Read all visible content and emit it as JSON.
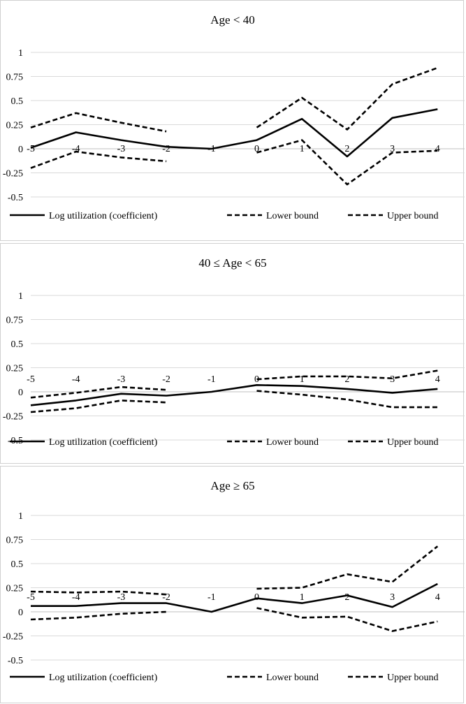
{
  "chart_data": [
    {
      "type": "line",
      "title": "Age < 40",
      "x": [
        -5,
        -4,
        -3,
        -2,
        -1,
        0,
        1,
        2,
        3,
        4
      ],
      "yticks": [
        "1",
        "0.75",
        "0.5",
        "0.25",
        "0",
        "-0.25",
        "-0.5"
      ],
      "ylim": [
        -0.5,
        1
      ],
      "grid": true,
      "legend_position": "bottom",
      "series": [
        {
          "name": "Log utilization (coefficient)",
          "style": "solid",
          "values": [
            0.01,
            0.17,
            0.09,
            0.02,
            0.0,
            0.09,
            0.31,
            -0.08,
            0.32,
            0.41
          ]
        },
        {
          "name": "Lower bound",
          "style": "dashed",
          "values": [
            -0.2,
            -0.03,
            -0.09,
            -0.13,
            null,
            -0.04,
            0.09,
            -0.37,
            -0.04,
            -0.02
          ]
        },
        {
          "name": "Upper bound",
          "style": "dashed",
          "values": [
            0.22,
            0.37,
            0.27,
            0.18,
            null,
            0.22,
            0.53,
            0.2,
            0.67,
            0.84
          ]
        }
      ]
    },
    {
      "type": "line",
      "title": "40 ≤ Age < 65",
      "x": [
        -5,
        -4,
        -3,
        -2,
        -1,
        0,
        1,
        2,
        3,
        4
      ],
      "yticks": [
        "1",
        "0.75",
        "0.5",
        "0.25",
        "0",
        "-0.25",
        "-0.5"
      ],
      "ylim": [
        -0.5,
        1
      ],
      "grid": true,
      "legend_position": "bottom",
      "series": [
        {
          "name": "Log utilization (coefficient)",
          "style": "solid",
          "values": [
            -0.14,
            -0.09,
            -0.02,
            -0.04,
            0.0,
            0.07,
            0.06,
            0.03,
            -0.01,
            0.03
          ]
        },
        {
          "name": "Lower bound",
          "style": "dashed",
          "values": [
            -0.21,
            -0.17,
            -0.09,
            -0.11,
            null,
            0.01,
            -0.03,
            -0.08,
            -0.16,
            -0.16
          ]
        },
        {
          "name": "Upper bound",
          "style": "dashed",
          "values": [
            -0.06,
            -0.01,
            0.05,
            0.02,
            null,
            0.13,
            0.16,
            0.16,
            0.14,
            0.22
          ]
        }
      ]
    },
    {
      "type": "line",
      "title": "Age ≥ 65",
      "x": [
        -5,
        -4,
        -3,
        -2,
        -1,
        0,
        1,
        2,
        3,
        4
      ],
      "yticks": [
        "1",
        "0.75",
        "0.5",
        "0.25",
        "0",
        "-0.25",
        "-0.5"
      ],
      "ylim": [
        -0.5,
        1
      ],
      "grid": true,
      "legend_position": "bottom",
      "series": [
        {
          "name": "Log utilization (coefficient)",
          "style": "solid",
          "values": [
            0.06,
            0.06,
            0.09,
            0.09,
            0.0,
            0.14,
            0.09,
            0.17,
            0.05,
            0.29
          ]
        },
        {
          "name": "Lower bound",
          "style": "dashed",
          "values": [
            -0.08,
            -0.06,
            -0.02,
            0.0,
            null,
            0.04,
            -0.06,
            -0.05,
            -0.2,
            -0.1
          ]
        },
        {
          "name": "Upper bound",
          "style": "dashed",
          "values": [
            0.21,
            0.2,
            0.21,
            0.18,
            null,
            0.24,
            0.25,
            0.39,
            0.31,
            0.68
          ]
        }
      ]
    }
  ]
}
